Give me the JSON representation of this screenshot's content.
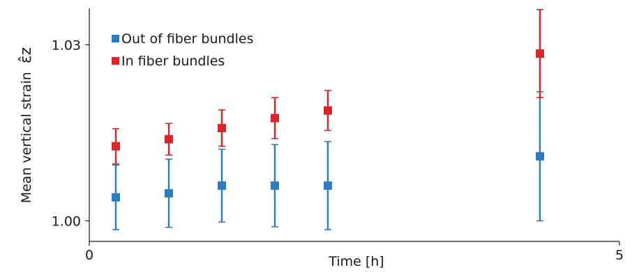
{
  "chart_data": {
    "type": "scatter",
    "title": "",
    "xlabel": "Time [h]",
    "ylabel": "Mean vertical strain",
    "ylabel_symbol": "ε̂z",
    "xlim": [
      0,
      5
    ],
    "ylim": [
      0.9965,
      1.0362
    ],
    "x_ticks": [
      0,
      5
    ],
    "x_tick_labels": [
      "0",
      "5"
    ],
    "y_ticks": [
      1.0,
      1.03
    ],
    "y_tick_labels": [
      "1.00",
      "1.03"
    ],
    "grid": false,
    "legend_position": "top-left",
    "series": [
      {
        "name": "Out of fiber bundles",
        "color": "#2f7bbf",
        "x": [
          0.25,
          0.75,
          1.25,
          1.75,
          2.25,
          4.25
        ],
        "y": [
          1.004,
          1.0047,
          1.006,
          1.006,
          1.006,
          1.011
        ],
        "err": [
          0.0055,
          0.0058,
          0.0062,
          0.007,
          0.0075,
          0.011
        ]
      },
      {
        "name": "In fiber bundles",
        "color": "#d9262b",
        "x": [
          0.25,
          0.75,
          1.25,
          1.75,
          2.25,
          4.25
        ],
        "y": [
          1.0127,
          1.0139,
          1.0158,
          1.0175,
          1.0188,
          1.0285
        ],
        "err": [
          0.003,
          0.0027,
          0.0031,
          0.0035,
          0.0034,
          0.0075
        ]
      }
    ]
  }
}
